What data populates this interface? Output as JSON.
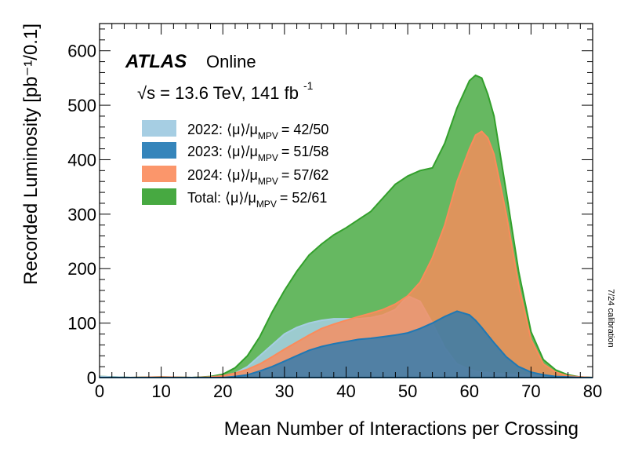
{
  "chart_data": {
    "type": "area",
    "xlabel": "Mean Number of Interactions per Crossing",
    "ylabel": "Recorded Luminosity [pb⁻¹/0.1]",
    "xlim": [
      0,
      80
    ],
    "ylim": [
      0,
      650
    ],
    "x_ticks": [
      0,
      10,
      20,
      30,
      40,
      50,
      60,
      70,
      80
    ],
    "y_ticks": [
      0,
      100,
      200,
      300,
      400,
      500,
      600
    ],
    "grid": false,
    "experiment": "ATLAS",
    "status": "Online",
    "energy_label": "√s = 13.6 TeV, 141 fb",
    "energy_sup": "-1",
    "calibration_note": "7/24 calibration",
    "legend_position": "top-left",
    "x": [
      0,
      5,
      10,
      15,
      18,
      20,
      22,
      24,
      26,
      28,
      30,
      32,
      34,
      36,
      38,
      40,
      42,
      44,
      46,
      48,
      50,
      52,
      54,
      56,
      58,
      60,
      61,
      62,
      63,
      64,
      66,
      68,
      70,
      72,
      74,
      76,
      78,
      80
    ],
    "series": [
      {
        "name": "2022:",
        "mu_label": "⟨μ⟩/μ",
        "mu_sub": "MPV",
        "mu_value": "= 42/50",
        "color": "#a6cee3",
        "values": [
          2,
          0,
          0,
          0,
          1,
          3,
          8,
          20,
          40,
          60,
          80,
          92,
          100,
          105,
          108,
          108,
          108,
          110,
          115,
          125,
          150,
          140,
          100,
          55,
          25,
          15,
          12,
          10,
          9,
          8,
          6,
          5,
          4,
          3,
          2,
          1,
          0,
          0
        ]
      },
      {
        "name": "2023:",
        "mu_label": "⟨μ⟩/μ",
        "mu_sub": "MPV",
        "mu_value": "= 51/58",
        "color": "#1f78b4",
        "values": [
          0,
          0,
          0,
          0,
          0,
          0,
          2,
          5,
          12,
          20,
          30,
          40,
          50,
          57,
          62,
          66,
          70,
          72,
          75,
          78,
          82,
          90,
          100,
          112,
          122,
          115,
          105,
          92,
          78,
          64,
          38,
          20,
          10,
          5,
          2,
          1,
          0,
          0
        ]
      },
      {
        "name": "2024:",
        "mu_label": "⟨μ⟩/μ",
        "mu_sub": "MPV",
        "mu_value": "= 57/62",
        "color": "#fb8b5b",
        "values": [
          0,
          0,
          1,
          0,
          1,
          3,
          8,
          15,
          25,
          38,
          52,
          65,
          78,
          90,
          98,
          105,
          112,
          118,
          125,
          135,
          150,
          175,
          220,
          280,
          360,
          420,
          445,
          452,
          440,
          410,
          300,
          170,
          70,
          25,
          10,
          3,
          1,
          0
        ]
      },
      {
        "name": "Total:",
        "mu_label": "⟨μ⟩/μ",
        "mu_sub": "MPV",
        "mu_value": "= 52/61",
        "color": "#33a02c",
        "values": [
          2,
          0,
          1,
          0,
          2,
          6,
          18,
          40,
          75,
          120,
          160,
          195,
          225,
          245,
          262,
          275,
          290,
          305,
          330,
          355,
          370,
          380,
          385,
          430,
          495,
          545,
          555,
          550,
          520,
          480,
          340,
          195,
          84,
          33,
          14,
          5,
          1,
          0
        ]
      }
    ]
  }
}
